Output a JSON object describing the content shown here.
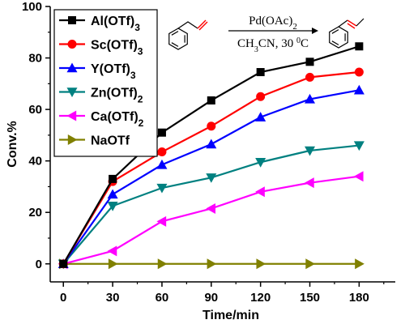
{
  "chart_data": {
    "type": "line",
    "xlabel": "Time/min",
    "ylabel": "Conv.%",
    "x": [
      0,
      30,
      60,
      90,
      120,
      150,
      180
    ],
    "xlim": [
      -8,
      202
    ],
    "ylim": [
      -7,
      100
    ],
    "xticks": [
      0,
      30,
      60,
      90,
      120,
      150,
      180
    ],
    "yticks": [
      0,
      20,
      40,
      60,
      80,
      100
    ],
    "grid": false,
    "legend_position": "top-left",
    "series": [
      {
        "name": "Al(OTf)3",
        "color": "#000000",
        "marker": "square",
        "values": [
          0,
          33,
          51,
          63.5,
          74.5,
          78.5,
          84.5
        ]
      },
      {
        "name": "Sc(OTf)3",
        "color": "#ff0000",
        "marker": "circle",
        "values": [
          0,
          32,
          43.5,
          53.5,
          65,
          72.5,
          74.5
        ]
      },
      {
        "name": "Y(OTf)3",
        "color": "#0000ff",
        "marker": "triangle-up",
        "values": [
          0,
          27,
          38.5,
          46.5,
          57,
          64,
          67.5
        ]
      },
      {
        "name": "Zn(OTf)2",
        "color": "#008080",
        "marker": "triangle-down",
        "values": [
          0,
          22.5,
          29.5,
          33.5,
          39.5,
          44,
          46
        ]
      },
      {
        "name": "Ca(OTf)2",
        "color": "#ff00ff",
        "marker": "triangle-left",
        "values": [
          0,
          5,
          16.5,
          21.5,
          28,
          31.5,
          34
        ]
      },
      {
        "name": "NaOTf",
        "color": "#808000",
        "marker": "triangle-right",
        "values": [
          0,
          0,
          0,
          0,
          0,
          0,
          0
        ]
      }
    ],
    "annotation": {
      "catalyst": "Pd(OAc)2",
      "conditions": "CH3CN, 30 0C"
    }
  }
}
